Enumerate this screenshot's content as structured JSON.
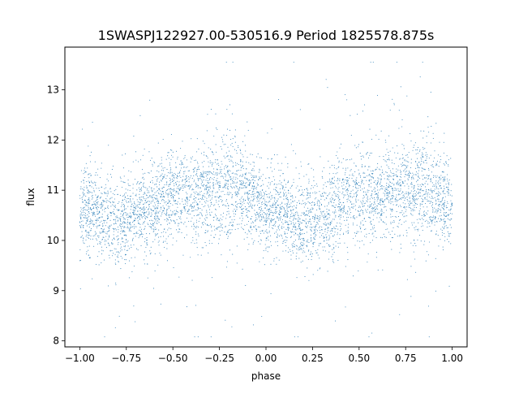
{
  "chart_data": {
    "type": "scatter",
    "title": "1SWASPJ122927.00-530516.9 Period 1825578.875s",
    "xlabel": "phase",
    "ylabel": "flux",
    "xlim": [
      -1.08,
      1.08
    ],
    "ylim": [
      7.88,
      13.85
    ],
    "xticks": [
      {
        "value": -1.0,
        "label": "−1.00"
      },
      {
        "value": -0.75,
        "label": "−0.75"
      },
      {
        "value": -0.5,
        "label": "−0.50"
      },
      {
        "value": -0.25,
        "label": "−0.25"
      },
      {
        "value": 0.0,
        "label": "0.00"
      },
      {
        "value": 0.25,
        "label": "0.25"
      },
      {
        "value": 0.5,
        "label": "0.50"
      },
      {
        "value": 0.75,
        "label": "0.75"
      },
      {
        "value": 1.0,
        "label": "1.00"
      }
    ],
    "yticks": [
      {
        "value": 8,
        "label": "8"
      },
      {
        "value": 9,
        "label": "9"
      },
      {
        "value": 10,
        "label": "10"
      },
      {
        "value": 11,
        "label": "11"
      },
      {
        "value": 12,
        "label": "12"
      },
      {
        "value": 13,
        "label": "13"
      }
    ],
    "grid": false,
    "legend": "none",
    "marker_color": "#1f77b4",
    "series_profile": {
      "phase": [
        -1.0,
        -0.9,
        -0.8,
        -0.7,
        -0.6,
        -0.5,
        -0.4,
        -0.3,
        -0.2,
        -0.1,
        0.0,
        0.1,
        0.2,
        0.3,
        0.4,
        0.5,
        0.6,
        0.7,
        0.8,
        0.9,
        1.0
      ],
      "median_flux": [
        10.6,
        10.55,
        10.35,
        10.5,
        10.75,
        10.9,
        10.9,
        10.95,
        11.05,
        10.9,
        10.65,
        10.55,
        10.35,
        10.5,
        10.75,
        10.9,
        10.9,
        10.95,
        11.05,
        10.9,
        10.65
      ],
      "scatter": [
        0.4,
        0.4,
        0.45,
        0.45,
        0.45,
        0.45,
        0.45,
        0.5,
        0.5,
        0.45,
        0.4,
        0.4,
        0.45,
        0.45,
        0.45,
        0.45,
        0.45,
        0.5,
        0.5,
        0.45,
        0.4
      ]
    }
  }
}
